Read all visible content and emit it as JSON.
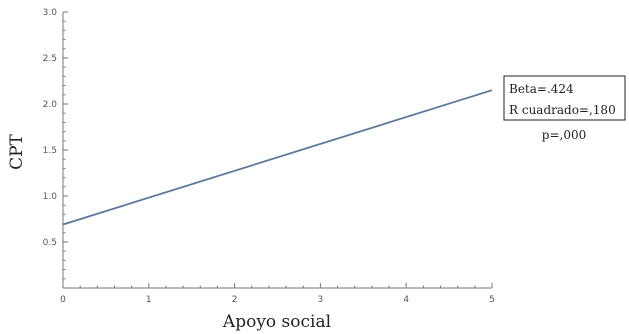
{
  "chart_data": {
    "type": "line",
    "title": "",
    "xlabel": "Apoyo social",
    "ylabel": "CPT",
    "xlim": [
      0,
      5
    ],
    "ylim": [
      0,
      3.0
    ],
    "x_ticks": [
      0,
      1,
      2,
      3,
      4,
      5
    ],
    "y_ticks": [
      0.5,
      1.0,
      1.5,
      2.0,
      2.5,
      3.0
    ],
    "x_tick_labels": [
      "0",
      "1",
      "2",
      "3",
      "4",
      "5"
    ],
    "y_tick_labels": [
      "0.5",
      "1.0",
      "1.5",
      "2.0",
      "2.5",
      "3.0"
    ],
    "grid": false,
    "series": [
      {
        "x": [
          0,
          5
        ],
        "y": [
          0.69,
          2.15
        ],
        "color": "#5b7a9b"
      }
    ],
    "annotation": {
      "box_lines": [
        "Beta=.424",
        "R cuadrado=,180"
      ],
      "below_text": "p=,000"
    }
  }
}
